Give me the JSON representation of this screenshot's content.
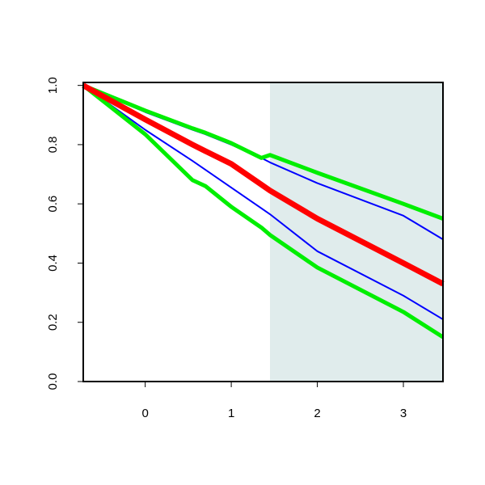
{
  "chart_data": {
    "type": "line",
    "x": [
      -0.72,
      0,
      0.55,
      0.7,
      1,
      1.35,
      1.45,
      2,
      3,
      3.46
    ],
    "series": [
      {
        "color": "#0000ff",
        "width": 2,
        "values": [
          1,
          0.91,
          0.85,
          0.835,
          0.8,
          0.755,
          0.74,
          0.67,
          0.56,
          0.48
        ]
      },
      {
        "color": "#0000ff",
        "width": 2,
        "values": [
          1,
          0.85,
          0.745,
          0.715,
          0.655,
          0.585,
          0.565,
          0.44,
          0.29,
          0.21
        ]
      },
      {
        "color": "#00ee00",
        "width": 5,
        "values": [
          1,
          0.915,
          0.855,
          0.84,
          0.805,
          0.755,
          0.765,
          0.705,
          0.6,
          0.55
        ]
      },
      {
        "color": "#00ee00",
        "width": 5,
        "values": [
          1,
          0.835,
          0.68,
          0.66,
          0.59,
          0.52,
          0.495,
          0.385,
          0.235,
          0.15
        ]
      },
      {
        "color": "#ff0000",
        "width": 7,
        "values": [
          1,
          0.885,
          0.8,
          0.778,
          0.735,
          0.665,
          0.645,
          0.55,
          0.4,
          0.33
        ]
      }
    ],
    "shaded_region": {
      "xlim": [
        1.45,
        3.46
      ],
      "color": "#e0ecec"
    },
    "xlim": [
      -0.72,
      3.46
    ],
    "ylim": [
      0,
      1.01
    ],
    "xticks": [
      0,
      1,
      2,
      3
    ],
    "yticks": [
      {
        "value": 0,
        "label": "0.0"
      },
      0.2,
      0.4,
      0.6,
      0.8,
      {
        "value": 1,
        "label": "1.0"
      }
    ]
  }
}
